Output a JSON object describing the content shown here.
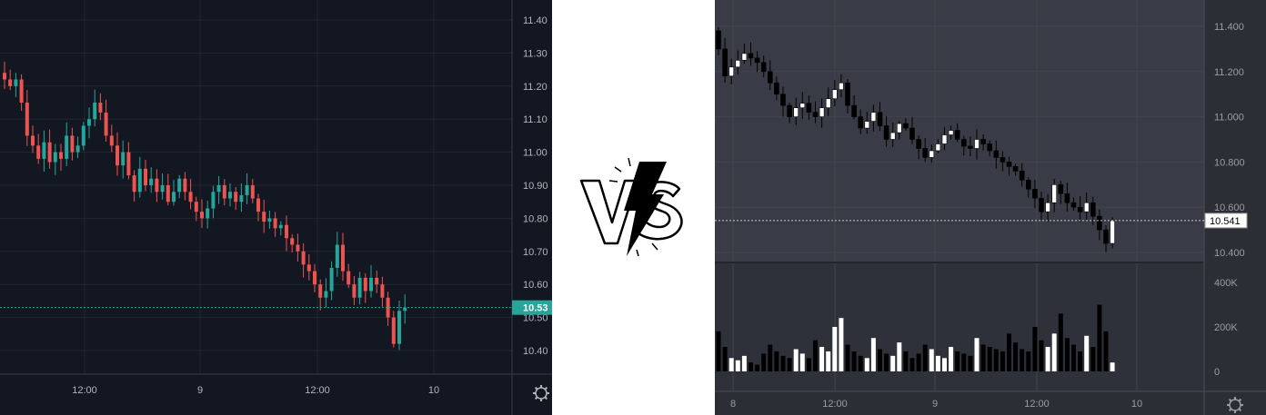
{
  "vs": {
    "label": "VS"
  },
  "chart_data": [
    {
      "type": "candlestick",
      "theme": "dark",
      "x_ticks": [
        "12:00",
        "9",
        "12:00",
        "10"
      ],
      "y_ticks": [
        "11.40",
        "11.30",
        "11.20",
        "11.10",
        "11.00",
        "10.90",
        "10.80",
        "10.70",
        "10.60",
        "10.50",
        "10.40"
      ],
      "price_label": "10.53",
      "last_price": 10.53,
      "ylim": [
        10.36,
        11.45
      ],
      "up_color": "#26a69a",
      "down_color": "#ef5350",
      "closes": [
        11.22,
        11.2,
        11.22,
        11.15,
        11.05,
        11.02,
        10.98,
        11.03,
        10.97,
        11.0,
        10.98,
        11.05,
        11.0,
        11.02,
        11.08,
        11.1,
        11.15,
        11.12,
        11.05,
        11.02,
        10.96,
        11.0,
        10.93,
        10.88,
        10.95,
        10.9,
        10.92,
        10.88,
        10.9,
        10.85,
        10.88,
        10.92,
        10.88,
        10.85,
        10.82,
        10.8,
        10.83,
        10.88,
        10.9,
        10.86,
        10.88,
        10.85,
        10.87,
        10.9,
        10.86,
        10.82,
        10.79,
        10.8,
        10.77,
        10.78,
        10.74,
        10.72,
        10.7,
        10.66,
        10.64,
        10.6,
        10.56,
        10.58,
        10.65,
        10.72,
        10.64,
        10.6,
        10.56,
        10.62,
        10.58,
        10.62,
        10.6,
        10.56,
        10.5,
        10.42,
        10.52,
        10.53
      ]
    },
    {
      "type": "candlestick",
      "theme": "grey",
      "x_ticks": [
        "8",
        "12:00",
        "9",
        "12:00",
        "10"
      ],
      "y_ticks": [
        "11.400",
        "11.200",
        "11.000",
        "10.800",
        "10.600",
        "10.400"
      ],
      "volume_ticks": [
        "400K",
        "200K",
        "0"
      ],
      "price_label": "10.541",
      "last_price": 10.541,
      "ylim": [
        10.35,
        11.5
      ],
      "up_color": "#ffffff",
      "down_color": "#000000",
      "closes": [
        11.3,
        11.18,
        11.22,
        11.25,
        11.28,
        11.26,
        11.24,
        11.2,
        11.15,
        11.1,
        11.05,
        11.0,
        11.04,
        11.06,
        11.02,
        11.0,
        11.04,
        11.08,
        11.12,
        11.15,
        11.05,
        11.0,
        10.95,
        10.98,
        11.02,
        10.96,
        10.9,
        10.93,
        10.97,
        10.95,
        10.9,
        10.86,
        10.82,
        10.85,
        10.88,
        10.92,
        10.94,
        10.9,
        10.87,
        10.86,
        10.9,
        10.88,
        10.85,
        10.82,
        10.8,
        10.78,
        10.76,
        10.72,
        10.68,
        10.64,
        10.58,
        10.62,
        10.7,
        10.66,
        10.62,
        10.6,
        10.58,
        10.62,
        10.56,
        10.5,
        10.44,
        10.54
      ],
      "volumes": [
        180000,
        110000,
        60000,
        50000,
        70000,
        40000,
        30000,
        80000,
        120000,
        90000,
        70000,
        60000,
        100000,
        80000,
        60000,
        140000,
        110000,
        90000,
        200000,
        240000,
        120000,
        90000,
        70000,
        60000,
        150000,
        100000,
        80000,
        70000,
        130000,
        90000,
        60000,
        80000,
        120000,
        100000,
        70000,
        60000,
        110000,
        90000,
        80000,
        70000,
        150000,
        120000,
        110000,
        100000,
        90000,
        170000,
        130000,
        100000,
        90000,
        200000,
        140000,
        110000,
        170000,
        260000,
        150000,
        120000,
        90000,
        160000,
        110000,
        300000,
        180000,
        40000
      ]
    }
  ]
}
